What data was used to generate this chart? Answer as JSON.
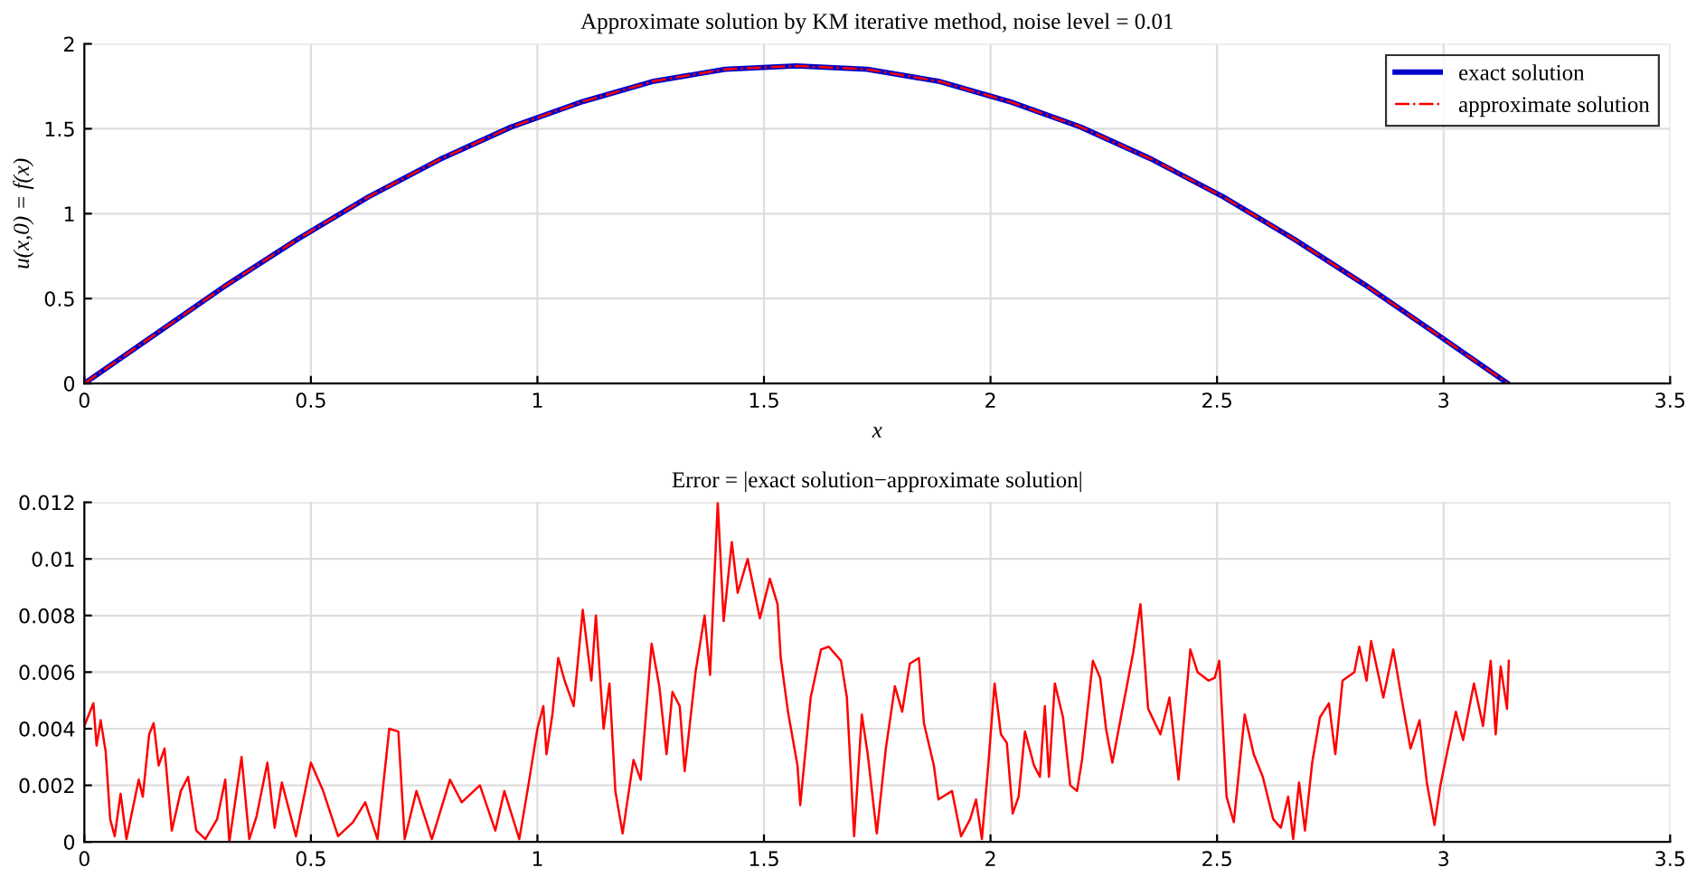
{
  "chart_data": [
    {
      "type": "line",
      "title": "Approximate solution by KM iterative method, noise level = 0.01",
      "xlabel": "x",
      "ylabel": "u(x,0) = f(x)",
      "x": [
        0,
        0.157,
        0.314,
        0.471,
        0.628,
        0.785,
        0.942,
        1.1,
        1.257,
        1.414,
        1.571,
        1.728,
        1.885,
        2.042,
        2.199,
        2.356,
        2.513,
        2.67,
        2.827,
        2.985,
        3.142
      ],
      "series": [
        {
          "name": "exact solution",
          "color": "#0000cc",
          "line_style": "solid",
          "values": [
            0,
            0.29,
            0.58,
            0.85,
            1.1,
            1.32,
            1.51,
            1.66,
            1.78,
            1.85,
            1.87,
            1.85,
            1.78,
            1.66,
            1.51,
            1.32,
            1.1,
            0.85,
            0.58,
            0.29,
            0
          ]
        },
        {
          "name": "approximate solution",
          "color": "#ff0000",
          "line_style": "dashed",
          "values": [
            0,
            0.29,
            0.58,
            0.85,
            1.1,
            1.32,
            1.51,
            1.66,
            1.78,
            1.85,
            1.87,
            1.85,
            1.78,
            1.66,
            1.51,
            1.32,
            1.1,
            0.85,
            0.58,
            0.29,
            0
          ]
        }
      ],
      "xlim": [
        0,
        3.5
      ],
      "xticks": [
        0,
        0.5,
        1,
        1.5,
        2,
        2.5,
        3,
        3.5
      ],
      "ylim": [
        0,
        2
      ],
      "yticks": [
        0,
        0.5,
        1,
        1.5,
        2
      ],
      "grid": true,
      "legend": "top right",
      "marker": "none"
    },
    {
      "type": "line",
      "title": "Error = |exact solution−approximate solution|",
      "x": [
        0,
        0.02,
        0.027,
        0.036,
        0.047,
        0.057,
        0.067,
        0.08,
        0.093,
        0.12,
        0.129,
        0.143,
        0.153,
        0.164,
        0.177,
        0.193,
        0.213,
        0.229,
        0.247,
        0.267,
        0.293,
        0.311,
        0.32,
        0.347,
        0.364,
        0.38,
        0.404,
        0.42,
        0.436,
        0.467,
        0.5,
        0.527,
        0.56,
        0.593,
        0.62,
        0.647,
        0.673,
        0.693,
        0.707,
        0.733,
        0.767,
        0.807,
        0.833,
        0.873,
        0.907,
        0.927,
        0.96,
        0.98,
        1.0,
        1.013,
        1.02,
        1.033,
        1.046,
        1.06,
        1.08,
        1.1,
        1.119,
        1.129,
        1.146,
        1.159,
        1.172,
        1.188,
        1.212,
        1.228,
        1.252,
        1.269,
        1.285,
        1.298,
        1.314,
        1.325,
        1.349,
        1.369,
        1.381,
        1.398,
        1.411,
        1.429,
        1.442,
        1.464,
        1.491,
        1.513,
        1.53,
        1.537,
        1.553,
        1.574,
        1.58,
        1.603,
        1.626,
        1.643,
        1.67,
        1.683,
        1.699,
        1.716,
        1.729,
        1.749,
        1.769,
        1.789,
        1.805,
        1.822,
        1.842,
        1.853,
        1.875,
        1.885,
        1.915,
        1.935,
        1.955,
        1.968,
        1.981,
        1.995,
        2.009,
        2.023,
        2.036,
        2.049,
        2.062,
        2.076,
        2.096,
        2.109,
        2.12,
        2.129,
        2.142,
        2.16,
        2.176,
        2.191,
        2.202,
        2.226,
        2.242,
        2.255,
        2.269,
        2.289,
        2.302,
        2.315,
        2.331,
        2.348,
        2.375,
        2.395,
        2.415,
        2.441,
        2.457,
        2.481,
        2.495,
        2.505,
        2.521,
        2.537,
        2.561,
        2.581,
        2.601,
        2.624,
        2.641,
        2.657,
        2.668,
        2.681,
        2.694,
        2.71,
        2.727,
        2.747,
        2.761,
        2.777,
        2.803,
        2.814,
        2.83,
        2.84,
        2.867,
        2.889,
        2.907,
        2.927,
        2.947,
        2.963,
        2.98,
        2.993,
        3.007,
        3.027,
        3.043,
        3.067,
        3.087,
        3.104,
        3.115,
        3.126,
        3.14,
        3.144
      ],
      "series": [
        {
          "color": "#ff0000",
          "line_style": "solid",
          "values": [
            0.0041,
            0.0049,
            0.0034,
            0.0043,
            0.0032,
            0.0008,
            0.0002,
            0.0017,
            0.0001,
            0.0022,
            0.0016,
            0.0038,
            0.0042,
            0.0027,
            0.0033,
            0.0004,
            0.0018,
            0.0023,
            0.0004,
            0.0001,
            0.0008,
            0.0022,
            0.0,
            0.003,
            0.0001,
            0.0009,
            0.0028,
            0.0005,
            0.0021,
            0.0002,
            0.0028,
            0.0018,
            0.0002,
            0.0007,
            0.0014,
            0.0001,
            0.004,
            0.0039,
            0.0001,
            0.0018,
            0.0001,
            0.0022,
            0.0014,
            0.002,
            0.0004,
            0.0018,
            0.0001,
            0.002,
            0.004,
            0.0048,
            0.0031,
            0.0045,
            0.0065,
            0.0057,
            0.0048,
            0.0082,
            0.0057,
            0.008,
            0.004,
            0.0056,
            0.0018,
            0.0003,
            0.0029,
            0.0022,
            0.007,
            0.0055,
            0.0031,
            0.0053,
            0.0048,
            0.0025,
            0.006,
            0.008,
            0.0059,
            0.012,
            0.0078,
            0.0106,
            0.0088,
            0.01,
            0.0079,
            0.0093,
            0.0084,
            0.0065,
            0.0046,
            0.0027,
            0.0013,
            0.0051,
            0.0068,
            0.0069,
            0.0064,
            0.0051,
            0.0002,
            0.0045,
            0.0031,
            0.0003,
            0.0033,
            0.0055,
            0.0046,
            0.0063,
            0.0065,
            0.0042,
            0.0027,
            0.0015,
            0.0018,
            0.0002,
            0.0008,
            0.0015,
            0.0001,
            0.0027,
            0.0056,
            0.0038,
            0.0035,
            0.001,
            0.0016,
            0.0039,
            0.0027,
            0.0023,
            0.0048,
            0.0023,
            0.0056,
            0.0044,
            0.002,
            0.0018,
            0.0029,
            0.0064,
            0.0058,
            0.004,
            0.0028,
            0.0045,
            0.0056,
            0.0067,
            0.0084,
            0.0047,
            0.0038,
            0.0051,
            0.0022,
            0.0068,
            0.006,
            0.0057,
            0.0058,
            0.0064,
            0.0016,
            0.0007,
            0.0045,
            0.0031,
            0.0023,
            0.0008,
            0.0005,
            0.0016,
            0.0001,
            0.0021,
            0.0004,
            0.0028,
            0.0044,
            0.0049,
            0.0031,
            0.0057,
            0.006,
            0.0069,
            0.0057,
            0.0071,
            0.0051,
            0.0068,
            0.0051,
            0.0033,
            0.0043,
            0.0021,
            0.0006,
            0.002,
            0.0031,
            0.0046,
            0.0036,
            0.0056,
            0.0041,
            0.0064,
            0.0038,
            0.0062,
            0.0047,
            0.0064
          ]
        }
      ],
      "xlim": [
        0,
        3.5
      ],
      "xticks": [
        0,
        0.5,
        1,
        1.5,
        2,
        2.5,
        3,
        3.5
      ],
      "ylim": [
        0,
        0.012
      ],
      "yticks": [
        0,
        0.002,
        0.004,
        0.006,
        0.008,
        0.01,
        0.012
      ],
      "grid": true,
      "marker": "none"
    }
  ]
}
